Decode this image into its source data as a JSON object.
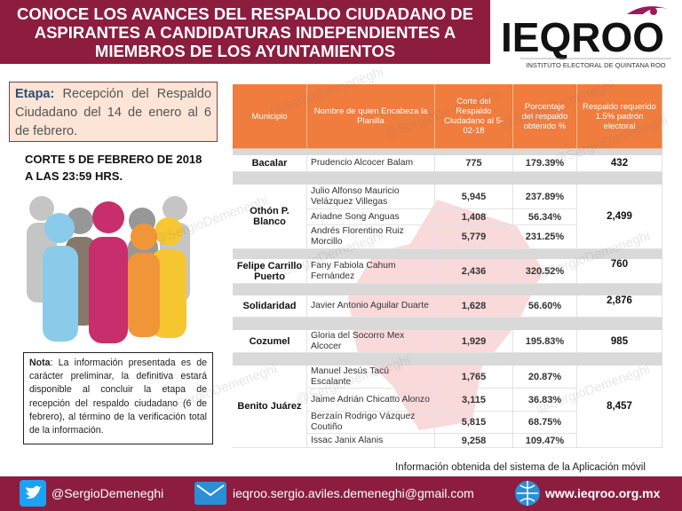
{
  "header": {
    "title_lines": [
      "CONOCE LOS AVANCES DEL RESPALDO CIUDADANO DE",
      "ASPIRANTES  A CANDIDATURAS INDEPENDIENTES A",
      "MIEMBROS DE LOS AYUNTAMIENTOS"
    ],
    "logo": "IEQROO",
    "logo_subtitle": "INSTITUTO ELECTORAL DE QUINTANA ROO"
  },
  "etapa": {
    "label": "Etapa:",
    "text": "Recepción del Respaldo Ciudadano del 14 de enero al 6 de febrero."
  },
  "corte": "CORTE 5 DE FEBRERO DE 2018 A LAS 23:59 HRS.",
  "nota": {
    "label": "Nota",
    "text": ": La información presentada es de carácter preliminar, la definitiva estará disponible al concluir la etapa de recepción del respaldo ciudadano (6 de febrero), al término de la verificación total de la información."
  },
  "watermark": "@SergioDemeneghi",
  "table": {
    "columns": [
      "Municipio",
      "Nombre de quien Encabeza la Planilla",
      "Corte del Respaldo Ciudadano al 5-02-18",
      "Porcentaje del respaldo obtenido %",
      "Respaldo requerido 1.5% padrón electoral"
    ],
    "groups": [
      {
        "municipio": "Bacalar",
        "requerido": "432",
        "rows": [
          {
            "nombre": "Prudencio Alcocer Balam",
            "corte": "775",
            "porcentaje": "179.39%"
          }
        ]
      },
      {
        "municipio": "Othón P. Blanco",
        "requerido": "2,499",
        "rows": [
          {
            "nombre": "Julio Alfonso Mauricio Velázquez Villegas",
            "corte": "5,945",
            "porcentaje": "237.89%"
          },
          {
            "nombre": "Ariadne Song Anguas",
            "corte": "1,408",
            "porcentaje": "56.34%"
          },
          {
            "nombre": "Andrés Florentino Ruiz Morcillo",
            "corte": "5,779",
            "porcentaje": "231.25%"
          }
        ]
      },
      {
        "municipio": "Felipe Carrillo Puerto",
        "requerido": "760",
        "rows": [
          {
            "nombre": "Fany Fabiola Cahum Fernández",
            "corte": "2,436",
            "porcentaje": "320.52%"
          }
        ]
      },
      {
        "municipio": "Solidaridad",
        "requerido": "2,876",
        "rows": [
          {
            "nombre": "Javier Antonio Aguilar Duarte",
            "corte": "1,628",
            "porcentaje": "56.60%"
          }
        ]
      },
      {
        "municipio": "Cozumel",
        "requerido": "985",
        "rows": [
          {
            "nombre": "Gloria del Socorro Mex Alcocer",
            "corte": "1,929",
            "porcentaje": "195.83%"
          }
        ]
      },
      {
        "municipio": "Benito Juárez",
        "requerido": "8,457",
        "rows": [
          {
            "nombre": "Manuel Jesús Tacú Escalante",
            "corte": "1,765",
            "porcentaje": "20.87%"
          },
          {
            "nombre": "Jaime Adrián Chicatto Alonzo",
            "corte": "3,115",
            "porcentaje": "36.83%"
          },
          {
            "nombre": "Berzaín Rodrigo Vázquez Coutiño",
            "corte": "5,815",
            "porcentaje": "68.75%"
          },
          {
            "nombre": "Issac Janix Alanis",
            "corte": "9,258",
            "porcentaje": "109.47%"
          }
        ]
      }
    ]
  },
  "footer": {
    "source": "Información obtenida del sistema de la Aplicación móvil",
    "twitter": "@SergioDemeneghi",
    "email": "ieqroo.sergio.aviles.demeneghi@gmail.com",
    "web": "www.ieqroo.org.mx"
  }
}
